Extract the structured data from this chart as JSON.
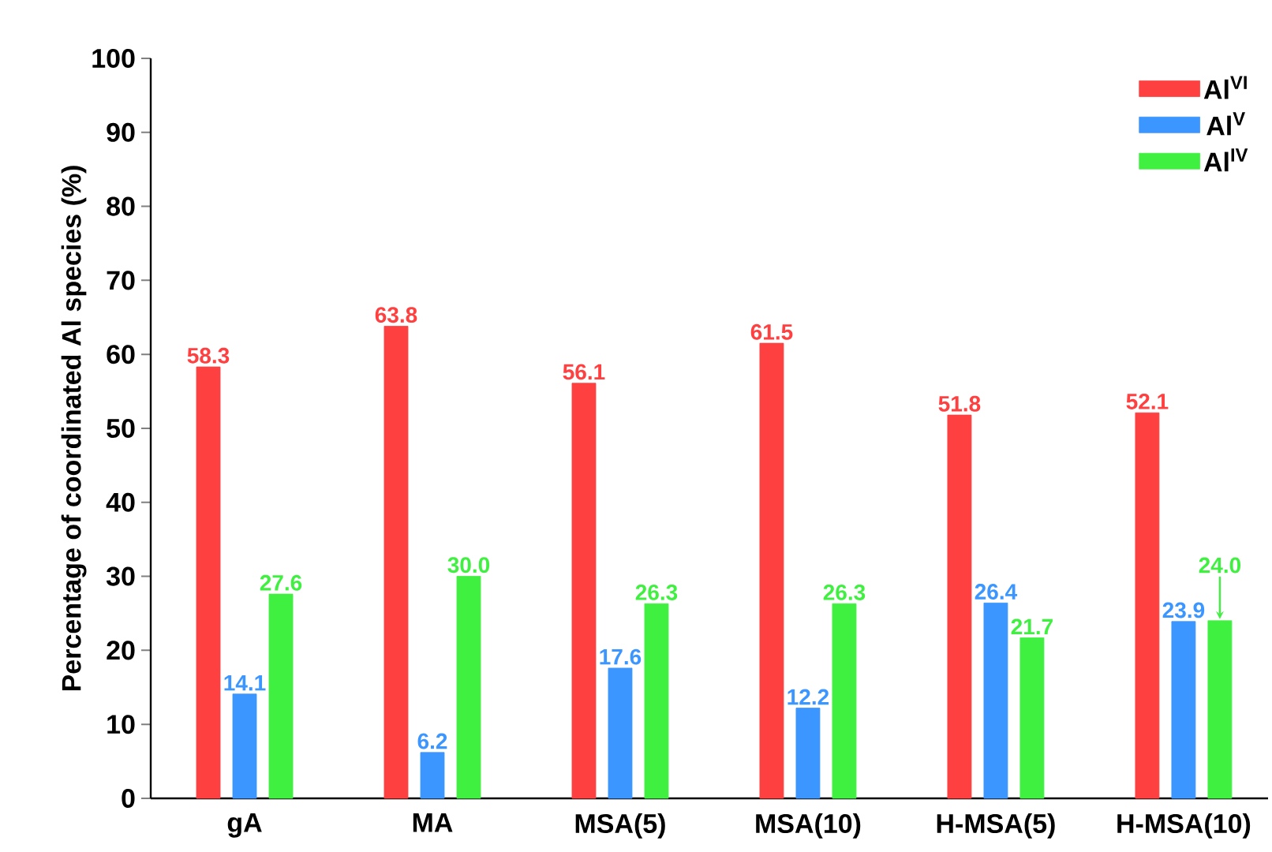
{
  "chart_data": {
    "type": "bar",
    "ylabel": "Percentage of coordinated Al species (%)",
    "categories": [
      "gA",
      "MA",
      "MSA(5)",
      "MSA(10)",
      "H-MSA(5)",
      "H-MSA(10)"
    ],
    "series": [
      {
        "name": "Al$^{VI}$",
        "color": "#ff4040",
        "values": [
          58.3,
          63.8,
          56.1,
          61.5,
          51.8,
          52.1
        ],
        "value_labels": [
          "58.3",
          "63.8",
          "56.1",
          "61.5",
          "51.8",
          "52.1"
        ]
      },
      {
        "name": "Al$^{V}$",
        "color": "#3c96ff",
        "values": [
          14.1,
          6.2,
          17.6,
          12.2,
          26.4,
          23.9
        ],
        "value_labels": [
          "14.1",
          "6.2",
          "17.6",
          "12.2",
          "26.4",
          "23.9"
        ]
      },
      {
        "name": "Al$^{IV}$",
        "color": "#40f040",
        "values": [
          27.6,
          30.0,
          26.3,
          26.3,
          21.7,
          24.0
        ],
        "value_labels": [
          "27.6",
          "30.0",
          "26.3",
          "26.3",
          "21.7",
          "24.0"
        ]
      }
    ],
    "ylim": [
      0,
      100
    ],
    "yticks": [
      0,
      10,
      20,
      30,
      40,
      50,
      60,
      70,
      80,
      90,
      100
    ],
    "legend": "top right",
    "grid": false
  }
}
